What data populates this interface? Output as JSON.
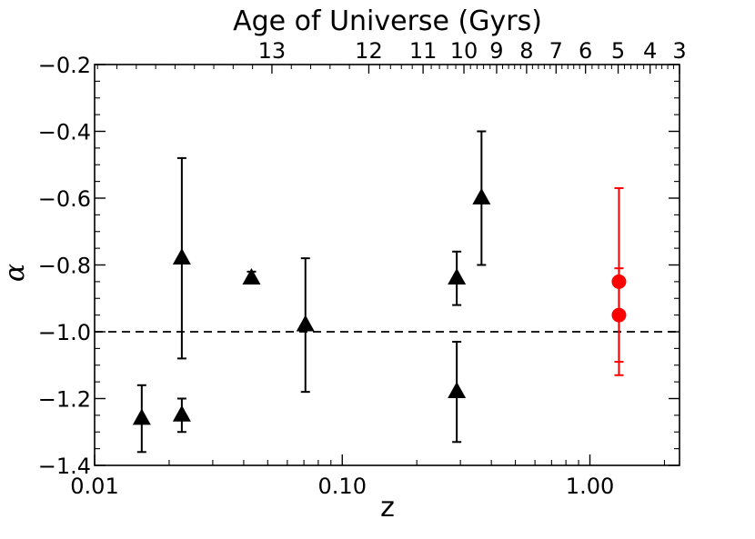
{
  "chart_data": {
    "type": "scatter",
    "title": "Age of Universe (Gyrs)",
    "xlabel": "z",
    "ylabel": "α",
    "x_scale": "log",
    "xlim": [
      0.01,
      2.3
    ],
    "ylim": [
      -1.4,
      -0.2
    ],
    "x_ticks": [
      {
        "value": 0.01,
        "label": "0.01"
      },
      {
        "value": 0.1,
        "label": "0.10"
      },
      {
        "value": 1.0,
        "label": "1.00"
      }
    ],
    "y_ticks": [
      {
        "value": -0.2,
        "label": "−0.2"
      },
      {
        "value": -0.4,
        "label": "−0.4"
      },
      {
        "value": -0.6,
        "label": "−0.6"
      },
      {
        "value": -0.8,
        "label": "−0.8"
      },
      {
        "value": -1.0,
        "label": "−1.0"
      },
      {
        "value": -1.2,
        "label": "−1.2"
      },
      {
        "value": -1.4,
        "label": "−1.4"
      }
    ],
    "top_axis": {
      "label": "Age of Universe (Gyrs)",
      "ticks": [
        {
          "z": 0.052,
          "label": "13"
        },
        {
          "z": 0.128,
          "label": "12"
        },
        {
          "z": 0.212,
          "label": "11"
        },
        {
          "z": 0.31,
          "label": "10"
        },
        {
          "z": 0.42,
          "label": "9"
        },
        {
          "z": 0.555,
          "label": "8"
        },
        {
          "z": 0.73,
          "label": "7"
        },
        {
          "z": 0.96,
          "label": "6"
        },
        {
          "z": 1.3,
          "label": "5"
        },
        {
          "z": 1.75,
          "label": "4"
        },
        {
          "z": 2.3,
          "label": "3"
        }
      ]
    },
    "reference_line": {
      "y": -1.0,
      "style": "dashed",
      "color": "#000000"
    },
    "series": [
      {
        "marker": "triangle",
        "color": "#000000",
        "points": [
          {
            "x": 0.0155,
            "y": -1.26,
            "ylo": -1.36,
            "yhi": -1.16
          },
          {
            "x": 0.0225,
            "y": -0.78,
            "ylo": -1.08,
            "yhi": -0.48
          },
          {
            "x": 0.0225,
            "y": -1.25,
            "ylo": -1.3,
            "yhi": -1.2
          },
          {
            "x": 0.043,
            "y": -0.84,
            "ylo": -0.85,
            "yhi": -0.82
          },
          {
            "x": 0.071,
            "y": -0.98,
            "ylo": -1.18,
            "yhi": -0.78
          },
          {
            "x": 0.29,
            "y": -0.84,
            "ylo": -0.92,
            "yhi": -0.76
          },
          {
            "x": 0.29,
            "y": -1.18,
            "ylo": -1.33,
            "yhi": -1.03
          },
          {
            "x": 0.365,
            "y": -0.6,
            "ylo": -0.8,
            "yhi": -0.4
          }
        ]
      },
      {
        "marker": "circle",
        "color": "#ff0000",
        "points": [
          {
            "x": 1.31,
            "y": -0.85,
            "ylo": -1.13,
            "yhi": -0.57
          },
          {
            "x": 1.31,
            "y": -0.95,
            "ylo": -1.09,
            "yhi": -0.81
          }
        ]
      }
    ]
  }
}
